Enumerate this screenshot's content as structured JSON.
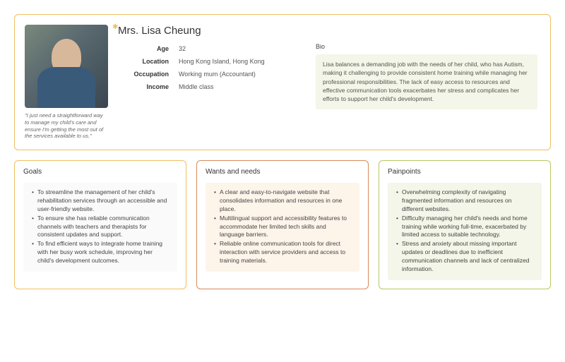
{
  "persona": {
    "name": "Mrs. Lisa Cheung",
    "quote": "\"I just need a straightforward way to manage my child's care and ensure I'm getting the most out of the services available to us.\"",
    "attributes": [
      {
        "key": "Age",
        "val": "32"
      },
      {
        "key": "Location",
        "val": "Hong Kong Island, Hong Kong"
      },
      {
        "key": "Occupation",
        "val": "Working mum (Accountant)"
      },
      {
        "key": "Income",
        "val": "Middle class"
      }
    ],
    "bio_label": "Bio",
    "bio": "Lisa balances a demanding job with the needs of her child, who has Autism, making it challenging to provide consistent home training while managing her professional responsibilities. The lack of easy access to resources and effective communication tools exacerbates her stress and complicates her efforts to support her child's development."
  },
  "sections": {
    "goals": {
      "title": "Goals",
      "items": [
        "To streamline the management of her child's rehabilitation services through an accessible and user-friendly website.",
        "To ensure she has reliable communication channels with teachers and therapists for consistent updates and support.",
        "To find efficient ways to integrate home training with her busy work schedule, improving her child's development outcomes."
      ]
    },
    "wants": {
      "title": "Wants and needs",
      "items": [
        "A clear and easy-to-navigate website that consolidates information and resources in one place.",
        "Multilingual support and accessibility features to accommodate her limited tech skills and language barriers.",
        "Reliable online communication tools for direct interaction with service providers and access to training materials."
      ]
    },
    "painpoints": {
      "title": "Painpoints",
      "items": [
        "Overwhelming complexity of navigating fragmented information and resources on different websites.",
        "Difficulty managing her child's needs and home training while working full-time, exacerbated by limited access to suitable technology.",
        "Stress and anxiety about missing important updates or deadlines due to inefficient communication channels and lack of centralized information."
      ]
    }
  },
  "styling": {
    "main_border": "#f0c060",
    "goals_border": "#f0c060",
    "wants_border": "#d88a5a",
    "pain_border": "#b8c860",
    "goals_bg": "#fafafa",
    "wants_bg": "#fdf4ea",
    "pain_bg": "#f3f6e8",
    "bio_bg": "#f3f6e8",
    "page_bg": "#ffffff",
    "text_color": "#333333",
    "muted_text": "#666666",
    "base_font_size": 9,
    "name_font_size": 15,
    "section_title_size": 10,
    "body_font_size": 8.5,
    "quote_font_size": 7.5
  }
}
